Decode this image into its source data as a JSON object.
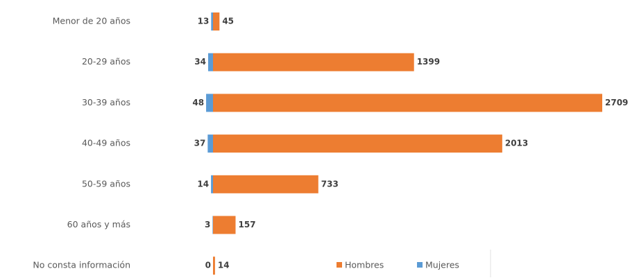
{
  "chart_data": {
    "type": "diverging_bar",
    "categories": [
      "Menor de 20 años",
      "20-29 años",
      "30-39 años",
      "40-49 años",
      "50-59 años",
      "60 años y más",
      "No consta información"
    ],
    "series": [
      {
        "name": "Hombres",
        "color": "#ed7d31",
        "values": [
          45,
          1399,
          2709,
          2013,
          733,
          157,
          14
        ]
      },
      {
        "name": "Mujeres",
        "color": "#5b9bd5",
        "values": [
          13,
          34,
          48,
          37,
          14,
          3,
          0
        ]
      }
    ]
  }
}
